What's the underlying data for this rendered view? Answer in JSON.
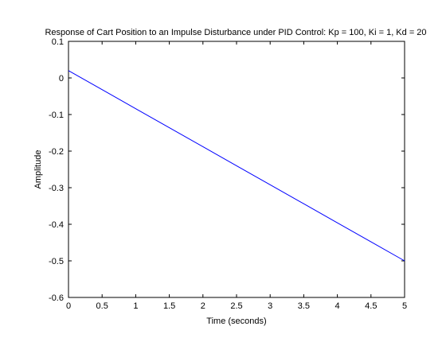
{
  "chart_data": {
    "type": "line",
    "title": "Response of Cart Position to an Impulse Disturbance under PID Control: Kp = 100, Ki = 1, Kd = 20",
    "xlabel": "Time (seconds)",
    "ylabel": "Amplitude",
    "xlim": [
      0,
      5
    ],
    "ylim": [
      -0.6,
      0.1
    ],
    "xticks": [
      0,
      0.5,
      1,
      1.5,
      2,
      2.5,
      3,
      3.5,
      4,
      4.5,
      5
    ],
    "xtick_labels": [
      "0",
      "0.5",
      "1",
      "1.5",
      "2",
      "2.5",
      "3",
      "3.5",
      "4",
      "4.5",
      "5"
    ],
    "yticks": [
      -0.6,
      -0.5,
      -0.4,
      -0.3,
      -0.2,
      -0.1,
      0,
      0.1
    ],
    "ytick_labels": [
      "-0.6",
      "-0.5",
      "-0.4",
      "-0.3",
      "-0.2",
      "-0.1",
      "0",
      "0.1"
    ],
    "grid": false,
    "line_color": "#0000ff",
    "series": [
      {
        "x": [
          0,
          0.5,
          1,
          1.5,
          2,
          2.5,
          3,
          3.5,
          4,
          4.5,
          5
        ],
        "y": [
          0.02,
          -0.032,
          -0.084,
          -0.136,
          -0.188,
          -0.24,
          -0.292,
          -0.344,
          -0.396,
          -0.448,
          -0.5
        ]
      }
    ]
  }
}
